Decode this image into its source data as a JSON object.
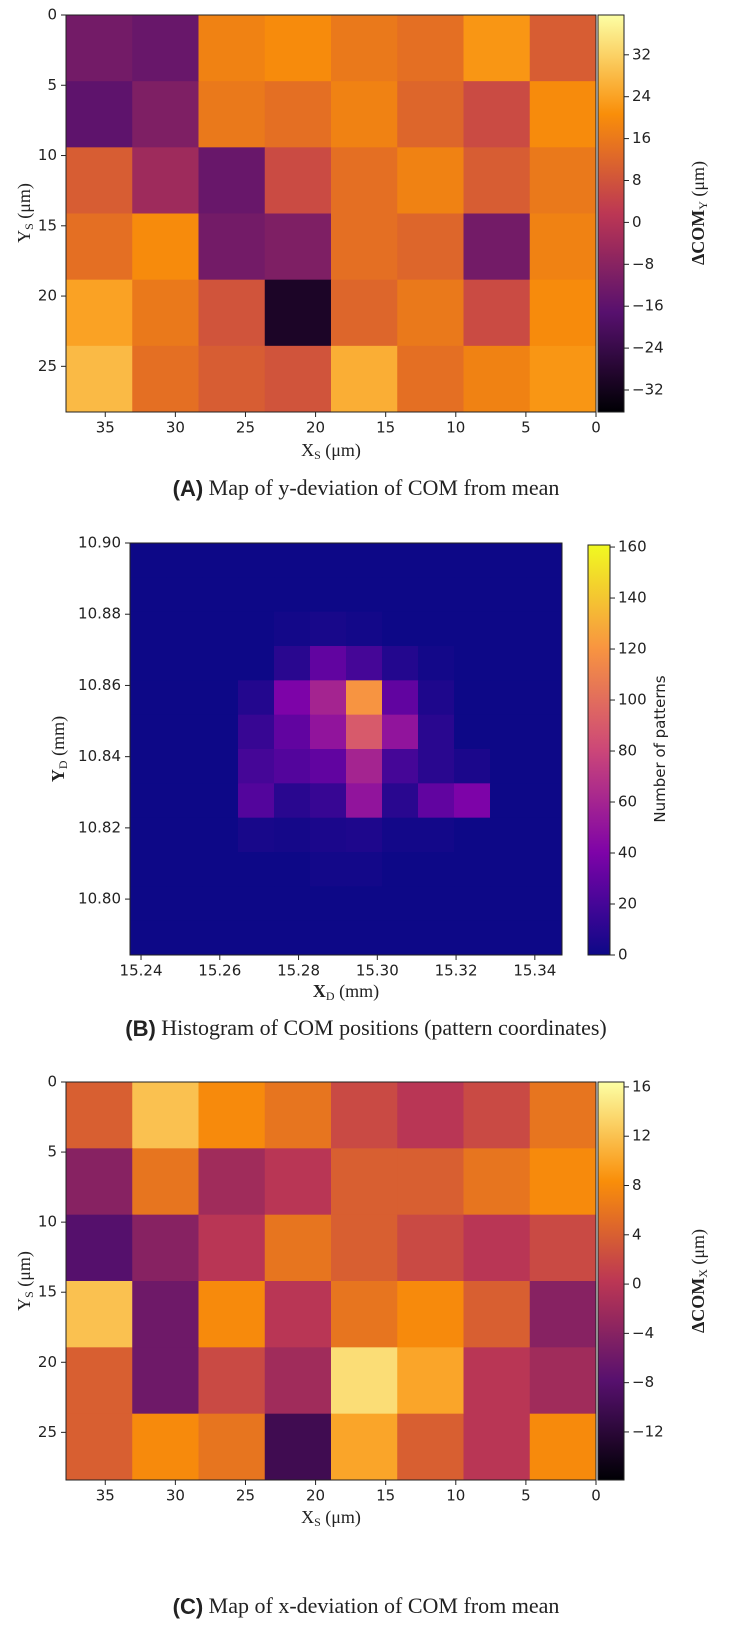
{
  "chart_data": [
    {
      "type": "heatmap",
      "colormap": "inferno",
      "xlim": [
        37.8,
        0
      ],
      "ylim": [
        28.25,
        0
      ],
      "xticks": [
        35,
        30,
        25,
        20,
        15,
        10,
        5,
        0
      ],
      "yticks": [
        0,
        5,
        10,
        15,
        20,
        25
      ],
      "xlabel": {
        "base": "X",
        "sub": "S",
        "rest": " (μm)"
      },
      "ylabel": {
        "base": "Y",
        "sub": "S",
        "rest": " (μm)"
      },
      "z": [
        [
          -12,
          -14,
          18,
          20,
          16,
          14,
          22,
          10
        ],
        [
          -16,
          -10,
          16,
          14,
          18,
          12,
          6,
          20
        ],
        [
          10,
          -4,
          -14,
          6,
          14,
          18,
          10,
          16
        ],
        [
          14,
          20,
          -12,
          -10,
          14,
          12,
          -12,
          18
        ],
        [
          24,
          16,
          8,
          -30,
          12,
          16,
          6,
          20
        ],
        [
          28,
          14,
          10,
          8,
          26,
          14,
          18,
          22
        ]
      ],
      "colorbar": {
        "clim": [
          -36.2,
          39.6
        ],
        "ticks": [
          32,
          24,
          16,
          8,
          0,
          {
            "value": -8,
            "label": "−8"
          },
          {
            "value": -16,
            "label": "−16"
          },
          {
            "value": -24,
            "label": "−24"
          },
          {
            "value": -32,
            "label": "−32"
          }
        ],
        "label": {
          "base": "ΔCOM",
          "sub": "Y",
          "rest": "  (μm)"
        }
      },
      "caption": {
        "tag": "(A)",
        "text": " Map of y-deviation of COM from mean"
      }
    },
    {
      "type": "heatmap",
      "colormap": "plasma",
      "xlim": [
        15.2372,
        15.3469
      ],
      "ylim": [
        10.7843,
        10.9
      ],
      "xticks": [
        15.24,
        15.26,
        15.28,
        {
          "value": 15.3,
          "label": "15.30"
        },
        15.32,
        15.34
      ],
      "yticks": [
        {
          "value": 10.9,
          "label": "10.90"
        },
        10.88,
        10.86,
        10.84,
        10.82,
        {
          "value": 10.8,
          "label": "10.80"
        }
      ],
      "xlabel": {
        "base": "X",
        "sub": "D",
        "rest": " (mm)"
      },
      "ylabel": {
        "base": "Y",
        "sub": "D",
        "rest": " (mm)"
      },
      "z": [
        [
          0,
          0,
          0,
          0,
          0,
          0,
          0,
          0,
          0,
          0,
          0,
          0
        ],
        [
          0,
          0,
          0,
          0,
          0,
          0,
          0,
          0,
          0,
          0,
          0,
          0
        ],
        [
          0,
          0,
          0,
          0,
          2,
          4,
          2,
          0,
          0,
          0,
          0,
          0
        ],
        [
          0,
          0,
          0,
          0,
          10,
          30,
          20,
          8,
          2,
          0,
          0,
          0
        ],
        [
          0,
          0,
          0,
          8,
          40,
          60,
          120,
          30,
          6,
          0,
          0,
          0
        ],
        [
          0,
          0,
          0,
          15,
          30,
          50,
          90,
          50,
          10,
          0,
          0,
          0
        ],
        [
          0,
          0,
          0,
          20,
          25,
          30,
          60,
          20,
          10,
          5,
          0,
          0
        ],
        [
          0,
          0,
          0,
          25,
          10,
          15,
          50,
          10,
          30,
          40,
          0,
          0
        ],
        [
          0,
          0,
          0,
          4,
          3,
          5,
          6,
          2,
          2,
          0,
          0,
          0
        ],
        [
          0,
          0,
          0,
          0,
          0,
          2,
          2,
          0,
          0,
          0,
          0,
          0
        ],
        [
          0,
          0,
          0,
          0,
          0,
          0,
          0,
          0,
          0,
          0,
          0,
          0
        ],
        [
          0,
          0,
          0,
          0,
          0,
          0,
          0,
          0,
          0,
          0,
          0,
          0
        ]
      ],
      "colorbar": {
        "clim": [
          0,
          160.8
        ],
        "ticks": [
          160,
          140,
          120,
          100,
          80,
          60,
          40,
          20,
          0
        ],
        "label": {
          "base": "Number of patterns"
        }
      },
      "caption": {
        "tag": "(B)",
        "text": " Histogram of COM positions (pattern coordinates)"
      }
    },
    {
      "type": "heatmap",
      "colormap": "inferno",
      "xlim": [
        37.8,
        0
      ],
      "ylim": [
        28.4,
        0
      ],
      "xticks": [
        35,
        30,
        25,
        20,
        15,
        10,
        5,
        0
      ],
      "yticks": [
        0,
        5,
        10,
        15,
        20,
        25
      ],
      "xlabel": {
        "base": "X",
        "sub": "S",
        "rest": " (μm)"
      },
      "ylabel": {
        "base": "Y",
        "sub": "S",
        "rest": " (μm)"
      },
      "z": [
        [
          4,
          12,
          8,
          6,
          2,
          0,
          2,
          6
        ],
        [
          -4,
          6,
          -2,
          0,
          4,
          4,
          6,
          8
        ],
        [
          -8,
          -4,
          0,
          6,
          4,
          2,
          0,
          2
        ],
        [
          12,
          -6,
          8,
          0,
          6,
          8,
          4,
          -4
        ],
        [
          4,
          -6,
          2,
          -2,
          14,
          10,
          0,
          -2
        ],
        [
          4,
          8,
          6,
          -10,
          10,
          4,
          0,
          8
        ]
      ],
      "colorbar": {
        "clim": [
          -15.9,
          16.4
        ],
        "ticks": [
          16,
          12,
          8,
          4,
          0,
          {
            "value": -4,
            "label": "−4"
          },
          {
            "value": -8,
            "label": "−8"
          },
          {
            "value": -12,
            "label": "−12"
          }
        ],
        "label": {
          "base": "ΔCOM",
          "sub": "X",
          "rest": "  (μm)"
        }
      },
      "caption": {
        "tag": "(C)",
        "text": " Map of x-deviation of COM from mean"
      }
    }
  ]
}
